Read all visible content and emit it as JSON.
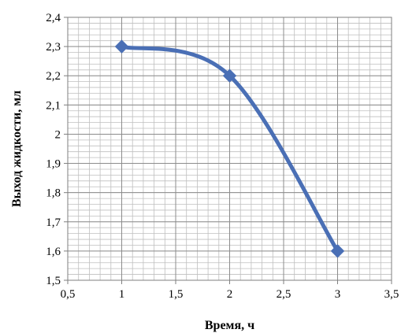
{
  "chart_data": {
    "type": "line",
    "xlabel": "Время, ч",
    "ylabel": "Выход жидкости, мл",
    "xlim": [
      0.5,
      3.5
    ],
    "ylim": [
      1.5,
      2.4
    ],
    "x_ticks": [
      "0,5",
      "1",
      "1,5",
      "2",
      "2,5",
      "3",
      "3,5"
    ],
    "y_ticks": [
      "1,5",
      "1,6",
      "1,7",
      "1,8",
      "1,9",
      "2",
      "2,1",
      "2,2",
      "2,3",
      "2,4"
    ],
    "grid": true,
    "smooth": true,
    "marker": "diamond",
    "series": [
      {
        "x": [
          1,
          2,
          3
        ],
        "y": [
          2.3,
          2.2,
          1.6
        ],
        "color": "#4a6fb5"
      }
    ]
  }
}
